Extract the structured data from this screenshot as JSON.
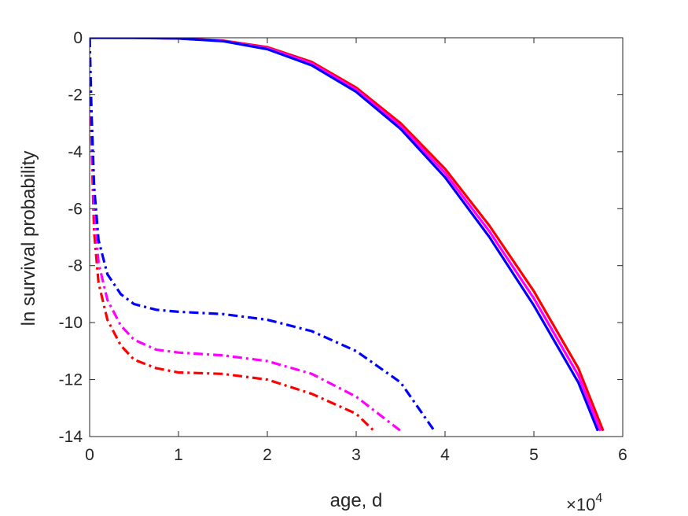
{
  "chart_data": {
    "type": "line",
    "xlabel": "age, d",
    "ylabel": "ln survival probability",
    "x_multiplier": "×10",
    "x_multiplier_exp": "4",
    "xlim": [
      0,
      6
    ],
    "ylim": [
      -14,
      0
    ],
    "xticks": [
      "0",
      "1",
      "2",
      "3",
      "4",
      "5",
      "6"
    ],
    "yticks": [
      "0",
      "-2",
      "-4",
      "-6",
      "-8",
      "-10",
      "-12",
      "-14"
    ],
    "grid": false,
    "series": [
      {
        "style": "solid",
        "color": "#ff0000",
        "points": [
          [
            0.0,
            0.0
          ],
          [
            0.5,
            -0.002
          ],
          [
            1.0,
            -0.02
          ],
          [
            1.5,
            -0.1
          ],
          [
            2.0,
            -0.33
          ],
          [
            2.5,
            -0.85
          ],
          [
            3.0,
            -1.75
          ],
          [
            3.5,
            -3.0
          ],
          [
            4.0,
            -4.6
          ],
          [
            4.5,
            -6.6
          ],
          [
            5.0,
            -8.9
          ],
          [
            5.5,
            -11.6
          ],
          [
            5.78,
            -13.8
          ]
        ]
      },
      {
        "style": "solid",
        "color": "#ff00ff",
        "points": [
          [
            0.0,
            0.0
          ],
          [
            0.5,
            -0.002
          ],
          [
            1.0,
            -0.02
          ],
          [
            1.5,
            -0.11
          ],
          [
            2.0,
            -0.36
          ],
          [
            2.5,
            -0.9
          ],
          [
            3.0,
            -1.82
          ],
          [
            3.5,
            -3.1
          ],
          [
            4.0,
            -4.75
          ],
          [
            4.5,
            -6.8
          ],
          [
            5.0,
            -9.15
          ],
          [
            5.5,
            -11.85
          ],
          [
            5.75,
            -13.8
          ]
        ]
      },
      {
        "style": "solid",
        "color": "#0000ff",
        "points": [
          [
            0.0,
            0.0
          ],
          [
            0.5,
            -0.003
          ],
          [
            1.0,
            -0.025
          ],
          [
            1.5,
            -0.12
          ],
          [
            2.0,
            -0.4
          ],
          [
            2.5,
            -0.97
          ],
          [
            3.0,
            -1.9
          ],
          [
            3.5,
            -3.2
          ],
          [
            4.0,
            -4.9
          ],
          [
            4.5,
            -7.0
          ],
          [
            5.0,
            -9.4
          ],
          [
            5.5,
            -12.1
          ],
          [
            5.72,
            -13.8
          ]
        ]
      },
      {
        "style": "dashdot",
        "color": "#ff0000",
        "points": [
          [
            0.0,
            0.0
          ],
          [
            0.02,
            -3.5
          ],
          [
            0.05,
            -6.8
          ],
          [
            0.1,
            -8.6
          ],
          [
            0.2,
            -9.9
          ],
          [
            0.35,
            -10.8
          ],
          [
            0.5,
            -11.3
          ],
          [
            0.75,
            -11.6
          ],
          [
            1.0,
            -11.75
          ],
          [
            1.5,
            -11.8
          ],
          [
            2.0,
            -12.0
          ],
          [
            2.5,
            -12.5
          ],
          [
            3.0,
            -13.2
          ],
          [
            3.2,
            -13.8
          ]
        ]
      },
      {
        "style": "dashdot",
        "color": "#ff00ff",
        "points": [
          [
            0.0,
            0.0
          ],
          [
            0.02,
            -3.0
          ],
          [
            0.05,
            -6.0
          ],
          [
            0.1,
            -7.9
          ],
          [
            0.2,
            -9.2
          ],
          [
            0.35,
            -10.1
          ],
          [
            0.5,
            -10.6
          ],
          [
            0.75,
            -10.95
          ],
          [
            1.0,
            -11.05
          ],
          [
            1.5,
            -11.15
          ],
          [
            2.0,
            -11.35
          ],
          [
            2.5,
            -11.8
          ],
          [
            3.0,
            -12.6
          ],
          [
            3.5,
            -13.8
          ]
        ]
      },
      {
        "style": "dashdot",
        "color": "#0000ff",
        "points": [
          [
            0.0,
            0.0
          ],
          [
            0.02,
            -2.5
          ],
          [
            0.05,
            -5.2
          ],
          [
            0.1,
            -7.1
          ],
          [
            0.2,
            -8.3
          ],
          [
            0.35,
            -9.0
          ],
          [
            0.5,
            -9.35
          ],
          [
            0.75,
            -9.55
          ],
          [
            1.0,
            -9.62
          ],
          [
            1.5,
            -9.7
          ],
          [
            2.0,
            -9.9
          ],
          [
            2.5,
            -10.3
          ],
          [
            3.0,
            -11.0
          ],
          [
            3.5,
            -12.1
          ],
          [
            3.88,
            -13.8
          ]
        ]
      }
    ]
  }
}
